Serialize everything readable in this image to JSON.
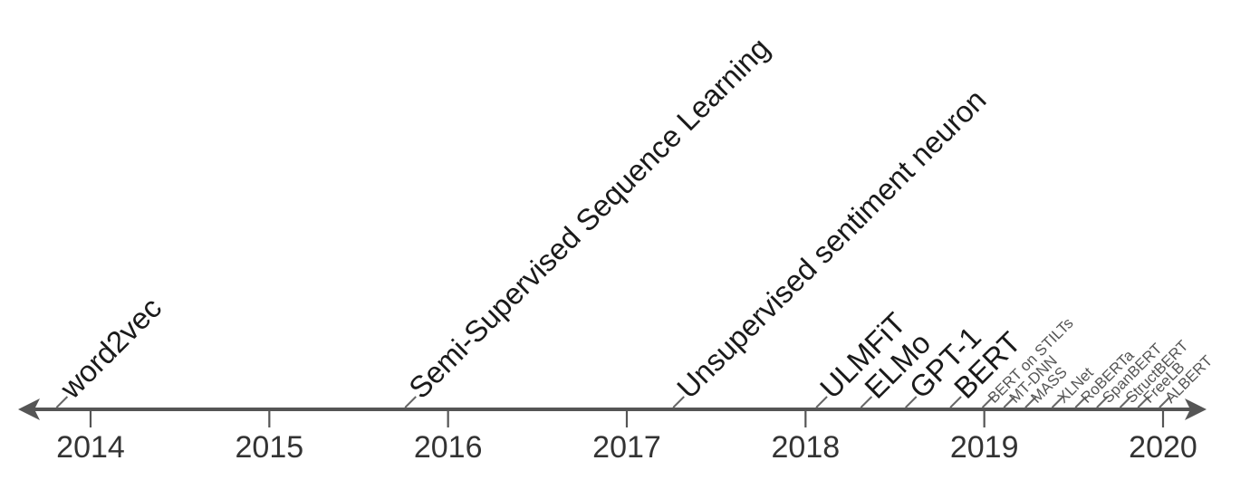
{
  "chart_data": {
    "type": "timeline",
    "x_range": [
      2013.3,
      2020.25
    ],
    "years": [
      2014,
      2015,
      2016,
      2017,
      2018,
      2019,
      2020
    ],
    "events": [
      {
        "label": "word2vec",
        "date": 2013.85,
        "size": "large"
      },
      {
        "label": "Semi-Supervised Sequence Learning",
        "date": 2015.8,
        "size": "large"
      },
      {
        "label": "Unsupervised sentiment neuron",
        "date": 2017.3,
        "size": "large"
      },
      {
        "label": "ULMFiT",
        "date": 2018.1,
        "size": "large"
      },
      {
        "label": "ELMo",
        "date": 2018.35,
        "size": "large"
      },
      {
        "label": "GPT-1",
        "date": 2018.6,
        "size": "large"
      },
      {
        "label": "BERT",
        "date": 2018.85,
        "size": "large"
      },
      {
        "label": "BERT on STILTs",
        "date": 2019.03,
        "size": "small"
      },
      {
        "label": "MT-DNN",
        "date": 2019.15,
        "size": "small"
      },
      {
        "label": "MASS",
        "date": 2019.27,
        "size": "small"
      },
      {
        "label": "XLNet",
        "date": 2019.42,
        "size": "small"
      },
      {
        "label": "RoBERTa",
        "date": 2019.55,
        "size": "small"
      },
      {
        "label": "SpanBERT",
        "date": 2019.67,
        "size": "small"
      },
      {
        "label": "StructBERT",
        "date": 2019.8,
        "size": "small"
      },
      {
        "label": "FreeLB",
        "date": 2019.9,
        "size": "small"
      },
      {
        "label": "ALBERT",
        "date": 2020.02,
        "size": "small"
      }
    ]
  }
}
